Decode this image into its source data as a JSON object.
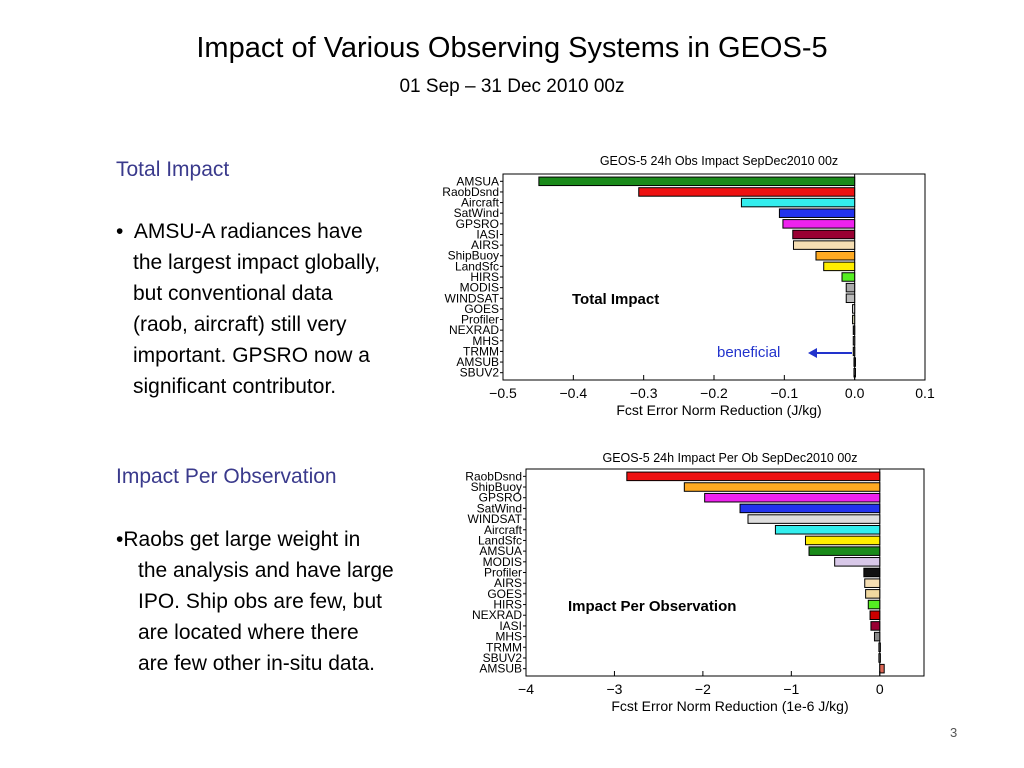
{
  "slide": {
    "title": "Impact of Various Observing Systems in GEOS-5",
    "subtitle": "01 Sep – 31 Dec 2010 00z",
    "page_number": "3"
  },
  "left_text": {
    "section1_heading": "Total Impact",
    "section1_bullet": "•",
    "section1_lines": [
      "AMSU-A radiances have",
      "the largest impact globally,",
      "but conventional data",
      "(raob, aircraft) still very",
      "important.  GPSRO now a",
      "significant contributor."
    ],
    "section2_heading": "Impact Per Observation",
    "section2_lines": [
      "•Raobs get large weight in",
      "the analysis and have large",
      "IPO.  Ship obs are few, but",
      "are located where there",
      "are few other in-situ data."
    ]
  },
  "chart_data": [
    {
      "type": "bar",
      "orientation": "horizontal",
      "title": "GEOS-5 24h Obs Impact SepDec2010 00z",
      "xlabel": "Fcst Error Norm Reduction (J/kg)",
      "xlim": [
        -0.5,
        0.1
      ],
      "xticks": [
        "−0.5",
        "−0.4",
        "−0.3",
        "−0.2",
        "−0.1",
        "0.0",
        "0.1"
      ],
      "xtick_values": [
        -0.5,
        -0.4,
        -0.3,
        -0.2,
        -0.1,
        0.0,
        0.1
      ],
      "annotation": "Total Impact",
      "arrow_label": "beneficial",
      "grid": false,
      "categories": [
        "AMSUA",
        "RaobDsnd",
        "Aircraft",
        "SatWind",
        "GPSRO",
        "IASI",
        "AIRS",
        "ShipBuoy",
        "LandSfc",
        "HIRS",
        "MODIS",
        "WINDSAT",
        "GOES",
        "Profiler",
        "NEXRAD",
        "MHS",
        "TRMM",
        "AMSUB",
        "SBUV2"
      ],
      "values": [
        -0.449,
        -0.307,
        -0.161,
        -0.107,
        -0.102,
        -0.088,
        -0.087,
        -0.055,
        -0.044,
        -0.018,
        -0.012,
        -0.012,
        -0.003,
        -0.003,
        -0.002,
        -0.002,
        -0.002,
        -0.001,
        -0.001
      ],
      "colors": [
        "#1a8a1a",
        "#ee1111",
        "#33eeee",
        "#2233ee",
        "#ee22ee",
        "#990033",
        "#f5deb3",
        "#ffaa22",
        "#ffee00",
        "#55ee22",
        "#aaaaaa",
        "#bbbbbb",
        "#dddddd",
        "#ccccaa",
        "#444444",
        "#888888",
        "#666666",
        "#222222",
        "#555555"
      ]
    },
    {
      "type": "bar",
      "orientation": "horizontal",
      "title": "GEOS-5 24h Impact Per Ob SepDec2010 00z",
      "xlabel": "Fcst Error Norm Reduction (1e-6 J/kg)",
      "xlim": [
        -4,
        0.5
      ],
      "xticks": [
        "−4",
        "−3",
        "−2",
        "−1",
        "0"
      ],
      "xtick_values": [
        -4,
        -3,
        -2,
        -1,
        0
      ],
      "annotation": "Impact Per Observation",
      "grid": false,
      "categories": [
        "RaobDsnd",
        "ShipBuoy",
        "GPSRO",
        "SatWind",
        "WINDSAT",
        "Aircraft",
        "LandSfc",
        "AMSUA",
        "MODIS",
        "Profiler",
        "AIRS",
        "GOES",
        "HIRS",
        "NEXRAD",
        "IASI",
        "MHS",
        "TRMM",
        "SBUV2",
        "AMSUB"
      ],
      "values": [
        -2.86,
        -2.21,
        -1.98,
        -1.58,
        -1.49,
        -1.18,
        -0.84,
        -0.8,
        -0.51,
        -0.18,
        -0.17,
        -0.16,
        -0.13,
        -0.11,
        -0.1,
        -0.06,
        -0.01,
        -0.01,
        0.05
      ],
      "colors": [
        "#ee1111",
        "#ffaa22",
        "#ee22ee",
        "#2233ee",
        "#dddddd",
        "#33eeee",
        "#ffee00",
        "#1a8a1a",
        "#d8c8e8",
        "#111111",
        "#f5deb3",
        "#f0d8a0",
        "#55ee22",
        "#cc0000",
        "#990033",
        "#888888",
        "#555555",
        "#666666",
        "#dd6655"
      ]
    }
  ]
}
